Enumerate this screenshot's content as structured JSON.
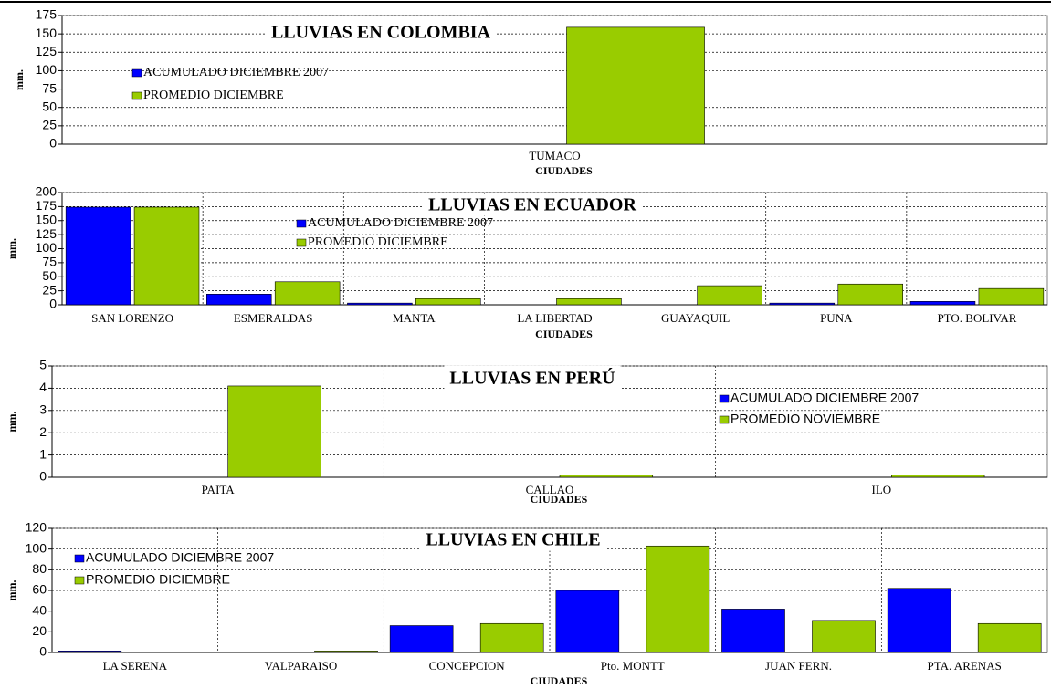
{
  "chart_data": [
    {
      "type": "bar",
      "title": "LLUVIAS EN COLOMBIA",
      "x_label": "CIUDADES",
      "y_label": "mm.",
      "categories": [
        "TUMACO"
      ],
      "series": [
        {
          "name": "ACUMULADO DICIEMBRE 2007",
          "color": "#0000ff",
          "values": [
            0
          ]
        },
        {
          "name": "PROMEDIO DICIEMBRE",
          "color": "#99cc00",
          "values": [
            159
          ]
        }
      ],
      "ylim": [
        0,
        175
      ],
      "yticks": [
        0,
        25,
        50,
        75,
        100,
        125,
        150,
        175
      ],
      "grid": true
    },
    {
      "type": "bar",
      "title": "LLUVIAS EN ECUADOR",
      "x_label": "CIUDADES",
      "y_label": "mm.",
      "categories": [
        "SAN LORENZO",
        "ESMERALDAS",
        "MANTA",
        "LA LIBERTAD",
        "GUAYAQUIL",
        "PUNA",
        "PTO. BOLIVAR"
      ],
      "series": [
        {
          "name": "ACUMULADO DICIEMBRE 2007",
          "color": "#0000ff",
          "values": [
            174,
            19,
            3,
            0,
            0,
            3,
            6
          ]
        },
        {
          "name": "PROMEDIO DICIEMBRE",
          "color": "#99cc00",
          "values": [
            174,
            41,
            11,
            11,
            34,
            37,
            29
          ]
        }
      ],
      "ylim": [
        0,
        200
      ],
      "yticks": [
        0,
        25,
        50,
        75,
        100,
        125,
        150,
        175,
        200
      ],
      "grid": true
    },
    {
      "type": "bar",
      "title": "LLUVIAS EN PERÚ",
      "x_label": "CIUDADES",
      "y_label": "mm.",
      "categories": [
        "PAITA",
        "CALLAO",
        "ILO"
      ],
      "series": [
        {
          "name": "ACUMULADO DICIEMBRE 2007",
          "color": "#0000ff",
          "values": [
            0,
            0,
            0
          ]
        },
        {
          "name": "PROMEDIO NOVIEMBRE",
          "color": "#99cc00",
          "values": [
            4.1,
            0.1,
            0.1
          ]
        }
      ],
      "ylim": [
        0,
        5
      ],
      "yticks": [
        0,
        1,
        2,
        3,
        4,
        5
      ],
      "grid": true
    },
    {
      "type": "bar",
      "title": "LLUVIAS EN CHILE",
      "x_label": "CIUDADES",
      "y_label": "mm.",
      "categories": [
        "LA SERENA",
        "VALPARAISO",
        "CONCEPCION",
        "Pto. MONTT",
        "JUAN FERN.",
        "PTA. ARENAS"
      ],
      "series": [
        {
          "name": "ACUMULADO DICIEMBRE 2007",
          "color": "#0000ff",
          "values": [
            1.5,
            0.5,
            26,
            60,
            42,
            62
          ]
        },
        {
          "name": "PROMEDIO DICIEMBRE",
          "color": "#99cc00",
          "values": [
            0,
            1.5,
            28,
            103,
            31,
            28
          ]
        }
      ],
      "ylim": [
        0,
        120
      ],
      "yticks": [
        0,
        20,
        40,
        60,
        80,
        100,
        120
      ],
      "grid": true
    }
  ]
}
